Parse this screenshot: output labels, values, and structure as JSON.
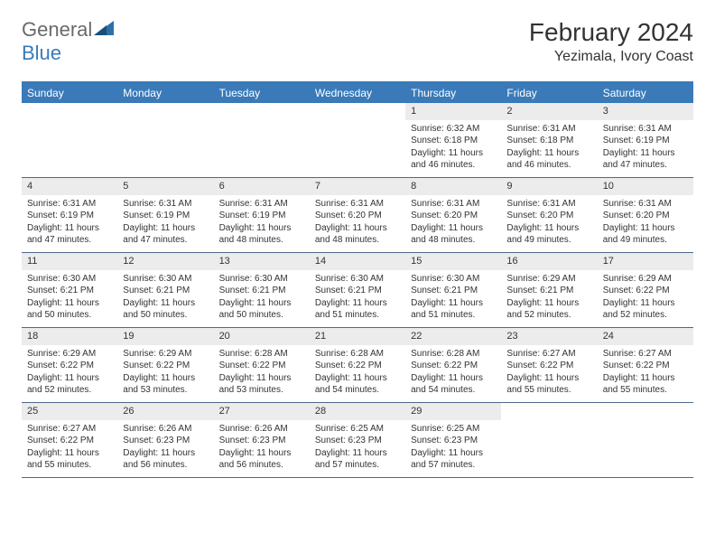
{
  "logo": {
    "general": "General",
    "blue": "Blue"
  },
  "title": "February 2024",
  "location": "Yezimala, Ivory Coast",
  "colors": {
    "header_bar": "#3a7ab8",
    "daynum_bg": "#ececec",
    "week_border": "#4a6a8a",
    "logo_gray": "#6a6a6a",
    "logo_blue": "#3a7ab8"
  },
  "weekdays": [
    "Sunday",
    "Monday",
    "Tuesday",
    "Wednesday",
    "Thursday",
    "Friday",
    "Saturday"
  ],
  "weeks": [
    [
      null,
      null,
      null,
      null,
      {
        "n": "1",
        "sr": "Sunrise: 6:32 AM",
        "ss": "Sunset: 6:18 PM",
        "dl": "Daylight: 11 hours and 46 minutes."
      },
      {
        "n": "2",
        "sr": "Sunrise: 6:31 AM",
        "ss": "Sunset: 6:18 PM",
        "dl": "Daylight: 11 hours and 46 minutes."
      },
      {
        "n": "3",
        "sr": "Sunrise: 6:31 AM",
        "ss": "Sunset: 6:19 PM",
        "dl": "Daylight: 11 hours and 47 minutes."
      }
    ],
    [
      {
        "n": "4",
        "sr": "Sunrise: 6:31 AM",
        "ss": "Sunset: 6:19 PM",
        "dl": "Daylight: 11 hours and 47 minutes."
      },
      {
        "n": "5",
        "sr": "Sunrise: 6:31 AM",
        "ss": "Sunset: 6:19 PM",
        "dl": "Daylight: 11 hours and 47 minutes."
      },
      {
        "n": "6",
        "sr": "Sunrise: 6:31 AM",
        "ss": "Sunset: 6:19 PM",
        "dl": "Daylight: 11 hours and 48 minutes."
      },
      {
        "n": "7",
        "sr": "Sunrise: 6:31 AM",
        "ss": "Sunset: 6:20 PM",
        "dl": "Daylight: 11 hours and 48 minutes."
      },
      {
        "n": "8",
        "sr": "Sunrise: 6:31 AM",
        "ss": "Sunset: 6:20 PM",
        "dl": "Daylight: 11 hours and 48 minutes."
      },
      {
        "n": "9",
        "sr": "Sunrise: 6:31 AM",
        "ss": "Sunset: 6:20 PM",
        "dl": "Daylight: 11 hours and 49 minutes."
      },
      {
        "n": "10",
        "sr": "Sunrise: 6:31 AM",
        "ss": "Sunset: 6:20 PM",
        "dl": "Daylight: 11 hours and 49 minutes."
      }
    ],
    [
      {
        "n": "11",
        "sr": "Sunrise: 6:30 AM",
        "ss": "Sunset: 6:21 PM",
        "dl": "Daylight: 11 hours and 50 minutes."
      },
      {
        "n": "12",
        "sr": "Sunrise: 6:30 AM",
        "ss": "Sunset: 6:21 PM",
        "dl": "Daylight: 11 hours and 50 minutes."
      },
      {
        "n": "13",
        "sr": "Sunrise: 6:30 AM",
        "ss": "Sunset: 6:21 PM",
        "dl": "Daylight: 11 hours and 50 minutes."
      },
      {
        "n": "14",
        "sr": "Sunrise: 6:30 AM",
        "ss": "Sunset: 6:21 PM",
        "dl": "Daylight: 11 hours and 51 minutes."
      },
      {
        "n": "15",
        "sr": "Sunrise: 6:30 AM",
        "ss": "Sunset: 6:21 PM",
        "dl": "Daylight: 11 hours and 51 minutes."
      },
      {
        "n": "16",
        "sr": "Sunrise: 6:29 AM",
        "ss": "Sunset: 6:21 PM",
        "dl": "Daylight: 11 hours and 52 minutes."
      },
      {
        "n": "17",
        "sr": "Sunrise: 6:29 AM",
        "ss": "Sunset: 6:22 PM",
        "dl": "Daylight: 11 hours and 52 minutes."
      }
    ],
    [
      {
        "n": "18",
        "sr": "Sunrise: 6:29 AM",
        "ss": "Sunset: 6:22 PM",
        "dl": "Daylight: 11 hours and 52 minutes."
      },
      {
        "n": "19",
        "sr": "Sunrise: 6:29 AM",
        "ss": "Sunset: 6:22 PM",
        "dl": "Daylight: 11 hours and 53 minutes."
      },
      {
        "n": "20",
        "sr": "Sunrise: 6:28 AM",
        "ss": "Sunset: 6:22 PM",
        "dl": "Daylight: 11 hours and 53 minutes."
      },
      {
        "n": "21",
        "sr": "Sunrise: 6:28 AM",
        "ss": "Sunset: 6:22 PM",
        "dl": "Daylight: 11 hours and 54 minutes."
      },
      {
        "n": "22",
        "sr": "Sunrise: 6:28 AM",
        "ss": "Sunset: 6:22 PM",
        "dl": "Daylight: 11 hours and 54 minutes."
      },
      {
        "n": "23",
        "sr": "Sunrise: 6:27 AM",
        "ss": "Sunset: 6:22 PM",
        "dl": "Daylight: 11 hours and 55 minutes."
      },
      {
        "n": "24",
        "sr": "Sunrise: 6:27 AM",
        "ss": "Sunset: 6:22 PM",
        "dl": "Daylight: 11 hours and 55 minutes."
      }
    ],
    [
      {
        "n": "25",
        "sr": "Sunrise: 6:27 AM",
        "ss": "Sunset: 6:22 PM",
        "dl": "Daylight: 11 hours and 55 minutes."
      },
      {
        "n": "26",
        "sr": "Sunrise: 6:26 AM",
        "ss": "Sunset: 6:23 PM",
        "dl": "Daylight: 11 hours and 56 minutes."
      },
      {
        "n": "27",
        "sr": "Sunrise: 6:26 AM",
        "ss": "Sunset: 6:23 PM",
        "dl": "Daylight: 11 hours and 56 minutes."
      },
      {
        "n": "28",
        "sr": "Sunrise: 6:25 AM",
        "ss": "Sunset: 6:23 PM",
        "dl": "Daylight: 11 hours and 57 minutes."
      },
      {
        "n": "29",
        "sr": "Sunrise: 6:25 AM",
        "ss": "Sunset: 6:23 PM",
        "dl": "Daylight: 11 hours and 57 minutes."
      },
      null,
      null
    ]
  ]
}
